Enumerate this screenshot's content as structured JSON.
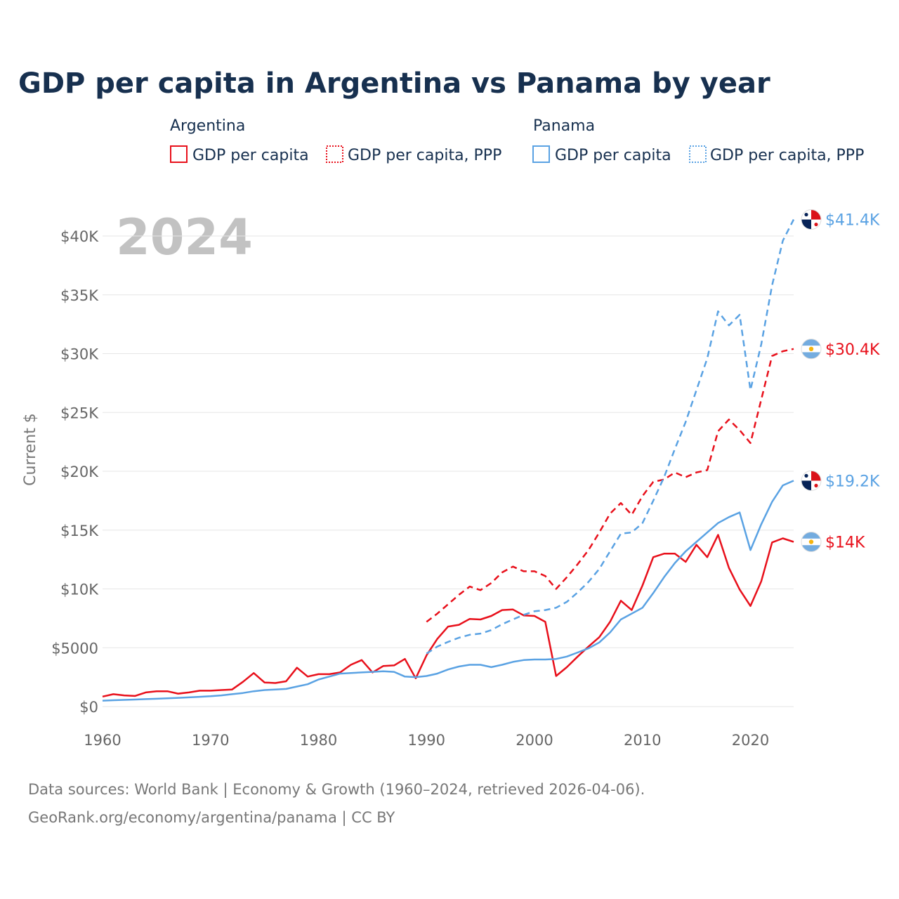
{
  "colors": {
    "argentina": "#e8101b",
    "panama": "#5aa2e3",
    "title": "#17304f",
    "tick": "#666666",
    "grid": "#e6e6e6",
    "year_watermark": "#c2c2c2"
  },
  "chart_data": {
    "type": "line",
    "title": "GDP per capita in Argentina vs Panama by year",
    "ylabel": "Current $",
    "xlabel": "",
    "xlim": [
      1960,
      2024
    ],
    "ylim": [
      0,
      42000
    ],
    "year_label": "2024",
    "x_ticks": [
      1960,
      1970,
      1980,
      1990,
      2000,
      2010,
      2020
    ],
    "x_tick_labels": [
      "1960",
      "1970",
      "1980",
      "1990",
      "2000",
      "2010",
      "2020"
    ],
    "y_ticks": [
      0,
      5000,
      10000,
      15000,
      20000,
      25000,
      30000,
      35000,
      40000
    ],
    "y_tick_labels": [
      "$0",
      "$5000",
      "$10K",
      "$15K",
      "$20K",
      "$25K",
      "$30K",
      "$35K",
      "$40K"
    ],
    "legend": {
      "groups": [
        {
          "name": "Argentina",
          "entries": [
            "GDP per capita",
            "GDP per capita, PPP"
          ]
        },
        {
          "name": "Panama",
          "entries": [
            "GDP per capita",
            "GDP per capita, PPP"
          ]
        }
      ]
    },
    "series": [
      {
        "name": "Argentina GDP per capita",
        "country": "argentina",
        "style": "solid",
        "end_label": "$14K",
        "x": [
          1960,
          1961,
          1962,
          1963,
          1964,
          1965,
          1966,
          1967,
          1968,
          1969,
          1970,
          1971,
          1972,
          1973,
          1974,
          1975,
          1976,
          1977,
          1978,
          1979,
          1980,
          1981,
          1982,
          1983,
          1984,
          1985,
          1986,
          1987,
          1988,
          1989,
          1990,
          1991,
          1992,
          1993,
          1994,
          1995,
          1996,
          1997,
          1998,
          1999,
          2000,
          2001,
          2002,
          2003,
          2004,
          2005,
          2006,
          2007,
          2008,
          2009,
          2010,
          2011,
          2012,
          2013,
          2014,
          2015,
          2016,
          2017,
          2018,
          2019,
          2020,
          2021,
          2022,
          2023,
          2024
        ],
        "values": [
          850,
          1050,
          950,
          900,
          1200,
          1300,
          1300,
          1100,
          1200,
          1350,
          1350,
          1400,
          1450,
          2100,
          2850,
          2050,
          2000,
          2150,
          3300,
          2550,
          2750,
          2750,
          2900,
          3550,
          3950,
          2900,
          3450,
          3500,
          4050,
          2400,
          4350,
          5750,
          6800,
          6950,
          7450,
          7400,
          7700,
          8200,
          8250,
          7750,
          7700,
          7200,
          2600,
          3350,
          4250,
          5100,
          5900,
          7200,
          9000,
          8200,
          10300,
          12700,
          13000,
          13000,
          12300,
          13750,
          12700,
          14600,
          11800,
          9950,
          8550,
          10650,
          13950,
          14300,
          14000
        ]
      },
      {
        "name": "Argentina GDP per capita, PPP",
        "country": "argentina",
        "style": "dashed",
        "end_label": "$30.4K",
        "x": [
          1990,
          1991,
          1992,
          1993,
          1994,
          1995,
          1996,
          1997,
          1998,
          1999,
          2000,
          2001,
          2002,
          2003,
          2004,
          2005,
          2006,
          2007,
          2008,
          2009,
          2010,
          2011,
          2012,
          2013,
          2014,
          2015,
          2016,
          2017,
          2018,
          2019,
          2020,
          2021,
          2022,
          2023,
          2024
        ],
        "values": [
          7200,
          7900,
          8700,
          9500,
          10200,
          9900,
          10500,
          11400,
          11900,
          11500,
          11500,
          11100,
          10000,
          11000,
          12100,
          13300,
          14800,
          16400,
          17300,
          16300,
          17900,
          19100,
          19300,
          19900,
          19500,
          19900,
          20100,
          23400,
          24400,
          23500,
          22400,
          26100,
          29800,
          30200,
          30400
        ]
      },
      {
        "name": "Panama GDP per capita",
        "country": "panama",
        "style": "solid",
        "end_label": "$19.2K",
        "x": [
          1960,
          1961,
          1962,
          1963,
          1964,
          1965,
          1966,
          1967,
          1968,
          1969,
          1970,
          1971,
          1972,
          1973,
          1974,
          1975,
          1976,
          1977,
          1978,
          1979,
          1980,
          1981,
          1982,
          1983,
          1984,
          1985,
          1986,
          1987,
          1988,
          1989,
          1990,
          1991,
          1992,
          1993,
          1994,
          1995,
          1996,
          1997,
          1998,
          1999,
          2000,
          2001,
          2002,
          2003,
          2004,
          2005,
          2006,
          2007,
          2008,
          2009,
          2010,
          2011,
          2012,
          2013,
          2014,
          2015,
          2016,
          2017,
          2018,
          2019,
          2020,
          2021,
          2022,
          2023,
          2024
        ],
        "values": [
          500,
          540,
          570,
          600,
          630,
          660,
          700,
          740,
          780,
          830,
          880,
          950,
          1050,
          1150,
          1300,
          1400,
          1450,
          1500,
          1700,
          1900,
          2300,
          2550,
          2800,
          2850,
          2900,
          2950,
          3000,
          2950,
          2550,
          2500,
          2600,
          2800,
          3150,
          3400,
          3550,
          3550,
          3350,
          3550,
          3800,
          3950,
          4000,
          4000,
          4050,
          4250,
          4600,
          4950,
          5450,
          6300,
          7400,
          7900,
          8400,
          9650,
          11000,
          12200,
          13200,
          14000,
          14800,
          15600,
          16100,
          16500,
          13300,
          15500,
          17400,
          18800,
          19200
        ]
      },
      {
        "name": "Panama GDP per capita, PPP",
        "country": "panama",
        "style": "dashed",
        "end_label": "$41.4K",
        "x": [
          1990,
          1991,
          1992,
          1993,
          1994,
          1995,
          1996,
          1997,
          1998,
          1999,
          2000,
          2001,
          2002,
          2003,
          2004,
          2005,
          2006,
          2007,
          2008,
          2009,
          2010,
          2011,
          2012,
          2013,
          2014,
          2015,
          2016,
          2017,
          2018,
          2019,
          2020,
          2021,
          2022,
          2023,
          2024
        ],
        "values": [
          4500,
          5100,
          5500,
          5850,
          6100,
          6200,
          6500,
          7000,
          7400,
          7800,
          8100,
          8200,
          8400,
          8900,
          9700,
          10600,
          11700,
          13200,
          14700,
          14800,
          15600,
          17500,
          19500,
          21900,
          24200,
          26900,
          29600,
          33600,
          32400,
          33300,
          26900,
          30800,
          35800,
          39600,
          41400
        ]
      }
    ]
  },
  "footer": {
    "line1": "Data sources: World Bank | Economy & Growth (1960–2024, retrieved 2026-04-06).",
    "line2": "GeoRank.org/economy/argentina/panama | CC BY"
  }
}
